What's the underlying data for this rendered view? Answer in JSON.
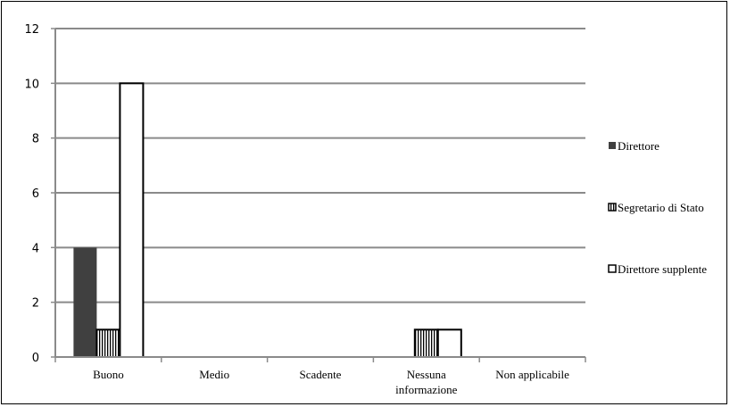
{
  "chart_data": {
    "type": "bar",
    "categories": [
      "Buono",
      "Medio",
      "Scadente",
      "Nessuna\ninformazione",
      "Non applicabile"
    ],
    "series": [
      {
        "name": "Direttore",
        "values": [
          4,
          0,
          0,
          0,
          0
        ],
        "color": "#404040",
        "pattern": "solid"
      },
      {
        "name": "Segretario di Stato",
        "values": [
          1,
          0,
          0,
          1,
          0
        ],
        "color": "#ffffff",
        "pattern": "vertical-stripes"
      },
      {
        "name": "Direttore supplente",
        "values": [
          10,
          0,
          0,
          1,
          0
        ],
        "color": "#ffffff",
        "pattern": "outline"
      }
    ],
    "ylim": [
      0,
      12
    ],
    "yticks": [
      0,
      2,
      4,
      6,
      8,
      10,
      12
    ],
    "grid": true,
    "legend_position": "right"
  }
}
